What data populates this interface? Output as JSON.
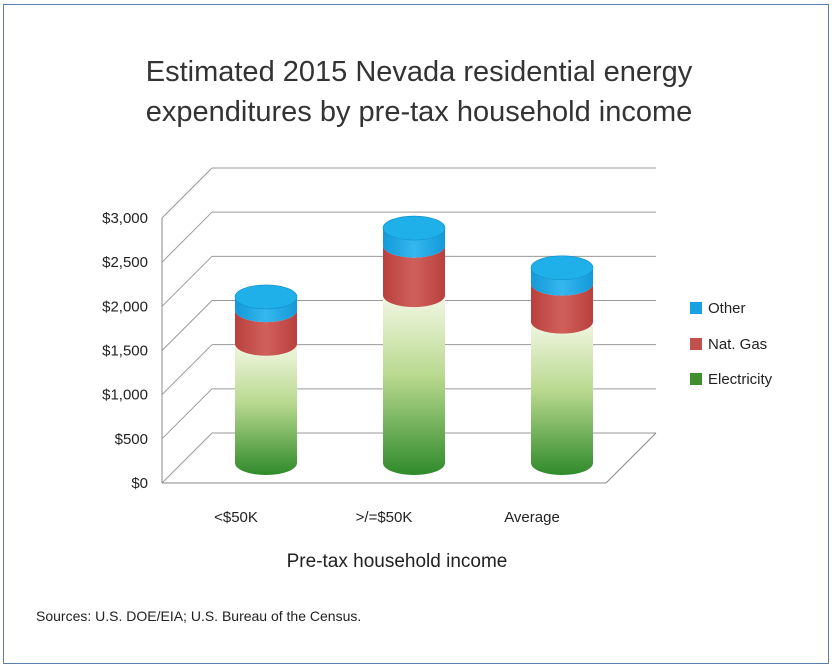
{
  "chart_data": {
    "type": "bar",
    "title": "Estimated 2015 Nevada residential energy expenditures by pre-tax household income",
    "title_lines": [
      "Estimated 2015 Nevada residential energy",
      "expenditures by pre-tax household income"
    ],
    "xlabel": "Pre-tax household income",
    "ylabel": "",
    "categories": [
      "<$50K",
      ">/=$50K",
      "Average"
    ],
    "stacked": true,
    "three_d": true,
    "series": [
      {
        "name": "Electricity",
        "values": [
          1350,
          1900,
          1600
        ],
        "color": "#3f8f2f"
      },
      {
        "name": "Nat. Gas",
        "values": [
          380,
          560,
          430
        ],
        "color": "#c0504d"
      },
      {
        "name": "Other",
        "values": [
          150,
          200,
          180
        ],
        "color": "#1ba1e2"
      }
    ],
    "ylim": [
      0,
      3000
    ],
    "yticks": [
      0,
      500,
      1000,
      1500,
      2000,
      2500,
      3000
    ],
    "ytick_labels": [
      "$0",
      "$500",
      "$1,000",
      "$1,500",
      "$2,000",
      "$2,500",
      "$3,000"
    ],
    "legend": {
      "placement": "right",
      "order": [
        "Other",
        "Nat. Gas",
        "Electricity"
      ]
    },
    "grid": true
  },
  "source": "Sources: U.S. DOE/EIA; U.S. Bureau of the Census."
}
